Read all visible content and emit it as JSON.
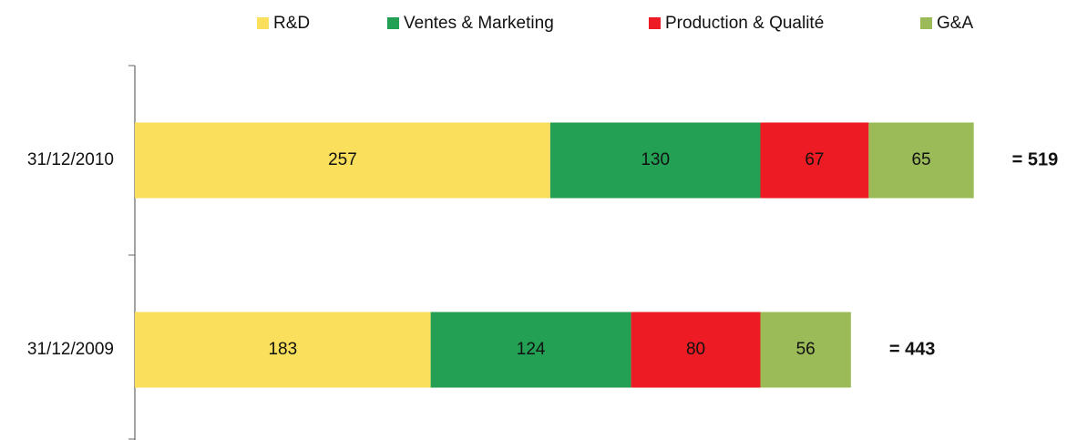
{
  "chart_data": {
    "type": "stacked_barh",
    "categories": [
      "31/12/2010",
      "31/12/2009"
    ],
    "series": [
      {
        "name": "R&D",
        "color": "#f9df5b",
        "values": [
          257,
          183
        ]
      },
      {
        "name": "Ventes & Marketing",
        "color": "#24a055",
        "values": [
          130,
          124
        ]
      },
      {
        "name": "Production & Qualité",
        "color": "#ed1c24",
        "values": [
          67,
          80
        ]
      },
      {
        "name": "G&A",
        "color": "#9bbb59",
        "values": [
          65,
          56
        ]
      }
    ],
    "annotations": [
      "= 519",
      "= 443"
    ],
    "xlim": [
      0,
      575
    ],
    "legend": "top"
  }
}
